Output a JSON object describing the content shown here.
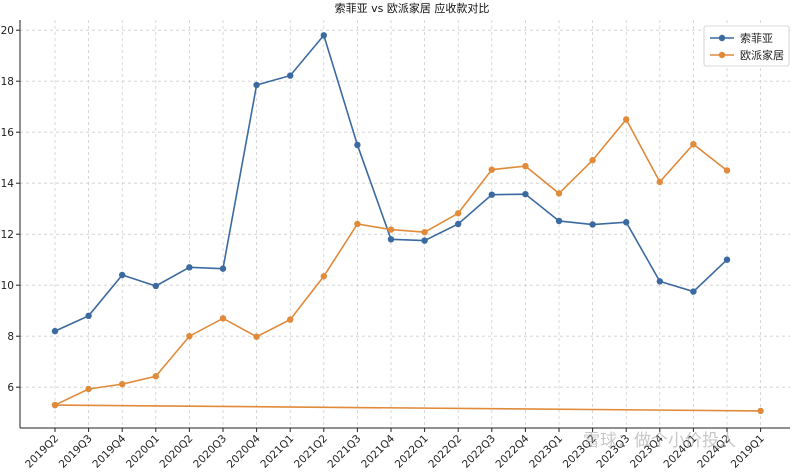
{
  "chart_data": {
    "type": "line",
    "title": "索菲亚 vs 欧派家居 应收款对比",
    "xlabel": "",
    "ylabel": "",
    "ylim": [
      4.4,
      20.4
    ],
    "yticks": [
      6,
      8,
      10,
      12,
      14,
      16,
      18,
      20
    ],
    "categories": [
      "2019Q2",
      "2019Q3",
      "2019Q4",
      "2020Q1",
      "2020Q2",
      "2020Q3",
      "2020Q4",
      "2021Q1",
      "2021Q2",
      "2021Q3",
      "2021Q4",
      "2022Q1",
      "2022Q2",
      "2022Q3",
      "2022Q4",
      "2023Q1",
      "2023Q2",
      "2023Q3",
      "2023Q4",
      "2024Q1",
      "2024Q2",
      "2019Q1"
    ],
    "grid": true,
    "legend_position": "top-right",
    "series": [
      {
        "name": "索菲亚",
        "color": "#3b6aa0",
        "points": [
          {
            "x": "2019Q2",
            "y": 8.2
          },
          {
            "x": "2019Q3",
            "y": 8.8
          },
          {
            "x": "2019Q4",
            "y": 10.4
          },
          {
            "x": "2020Q1",
            "y": 9.97
          },
          {
            "x": "2020Q2",
            "y": 10.7
          },
          {
            "x": "2020Q3",
            "y": 10.65
          },
          {
            "x": "2020Q4",
            "y": 17.85
          },
          {
            "x": "2021Q1",
            "y": 18.22
          },
          {
            "x": "2021Q2",
            "y": 19.8
          },
          {
            "x": "2021Q3",
            "y": 15.5
          },
          {
            "x": "2021Q4",
            "y": 11.8
          },
          {
            "x": "2022Q1",
            "y": 11.75
          },
          {
            "x": "2022Q2",
            "y": 12.4
          },
          {
            "x": "2022Q3",
            "y": 13.55
          },
          {
            "x": "2022Q4",
            "y": 13.57
          },
          {
            "x": "2023Q1",
            "y": 12.52
          },
          {
            "x": "2023Q2",
            "y": 12.38
          },
          {
            "x": "2023Q3",
            "y": 12.47
          },
          {
            "x": "2023Q4",
            "y": 10.15
          },
          {
            "x": "2024Q1",
            "y": 9.75
          },
          {
            "x": "2024Q2",
            "y": 11.0
          }
        ]
      },
      {
        "name": "欧派家居",
        "color": "#e08a3a",
        "points": [
          {
            "x": "2019Q2",
            "y": 5.3
          },
          {
            "x": "2019Q3",
            "y": 5.93
          },
          {
            "x": "2019Q4",
            "y": 6.12
          },
          {
            "x": "2020Q1",
            "y": 6.43
          },
          {
            "x": "2020Q2",
            "y": 8.0
          },
          {
            "x": "2020Q3",
            "y": 8.7
          },
          {
            "x": "2020Q4",
            "y": 7.98
          },
          {
            "x": "2021Q1",
            "y": 8.65
          },
          {
            "x": "2021Q2",
            "y": 10.35
          },
          {
            "x": "2021Q3",
            "y": 12.4
          },
          {
            "x": "2021Q4",
            "y": 12.18
          },
          {
            "x": "2022Q1",
            "y": 12.08
          },
          {
            "x": "2022Q2",
            "y": 12.82
          },
          {
            "x": "2022Q3",
            "y": 14.53
          },
          {
            "x": "2022Q4",
            "y": 14.67
          },
          {
            "x": "2023Q1",
            "y": 13.6
          },
          {
            "x": "2023Q2",
            "y": 14.9
          },
          {
            "x": "2023Q3",
            "y": 16.5
          },
          {
            "x": "2023Q4",
            "y": 14.05
          },
          {
            "x": "2024Q1",
            "y": 15.53
          },
          {
            "x": "2024Q2",
            "y": 14.5
          }
        ],
        "extra_line": [
          {
            "x": "2019Q2",
            "y": 5.3
          },
          {
            "x": "2019Q1",
            "y": 5.07
          }
        ]
      }
    ]
  },
  "watermark": "雪球：做个小价投人"
}
